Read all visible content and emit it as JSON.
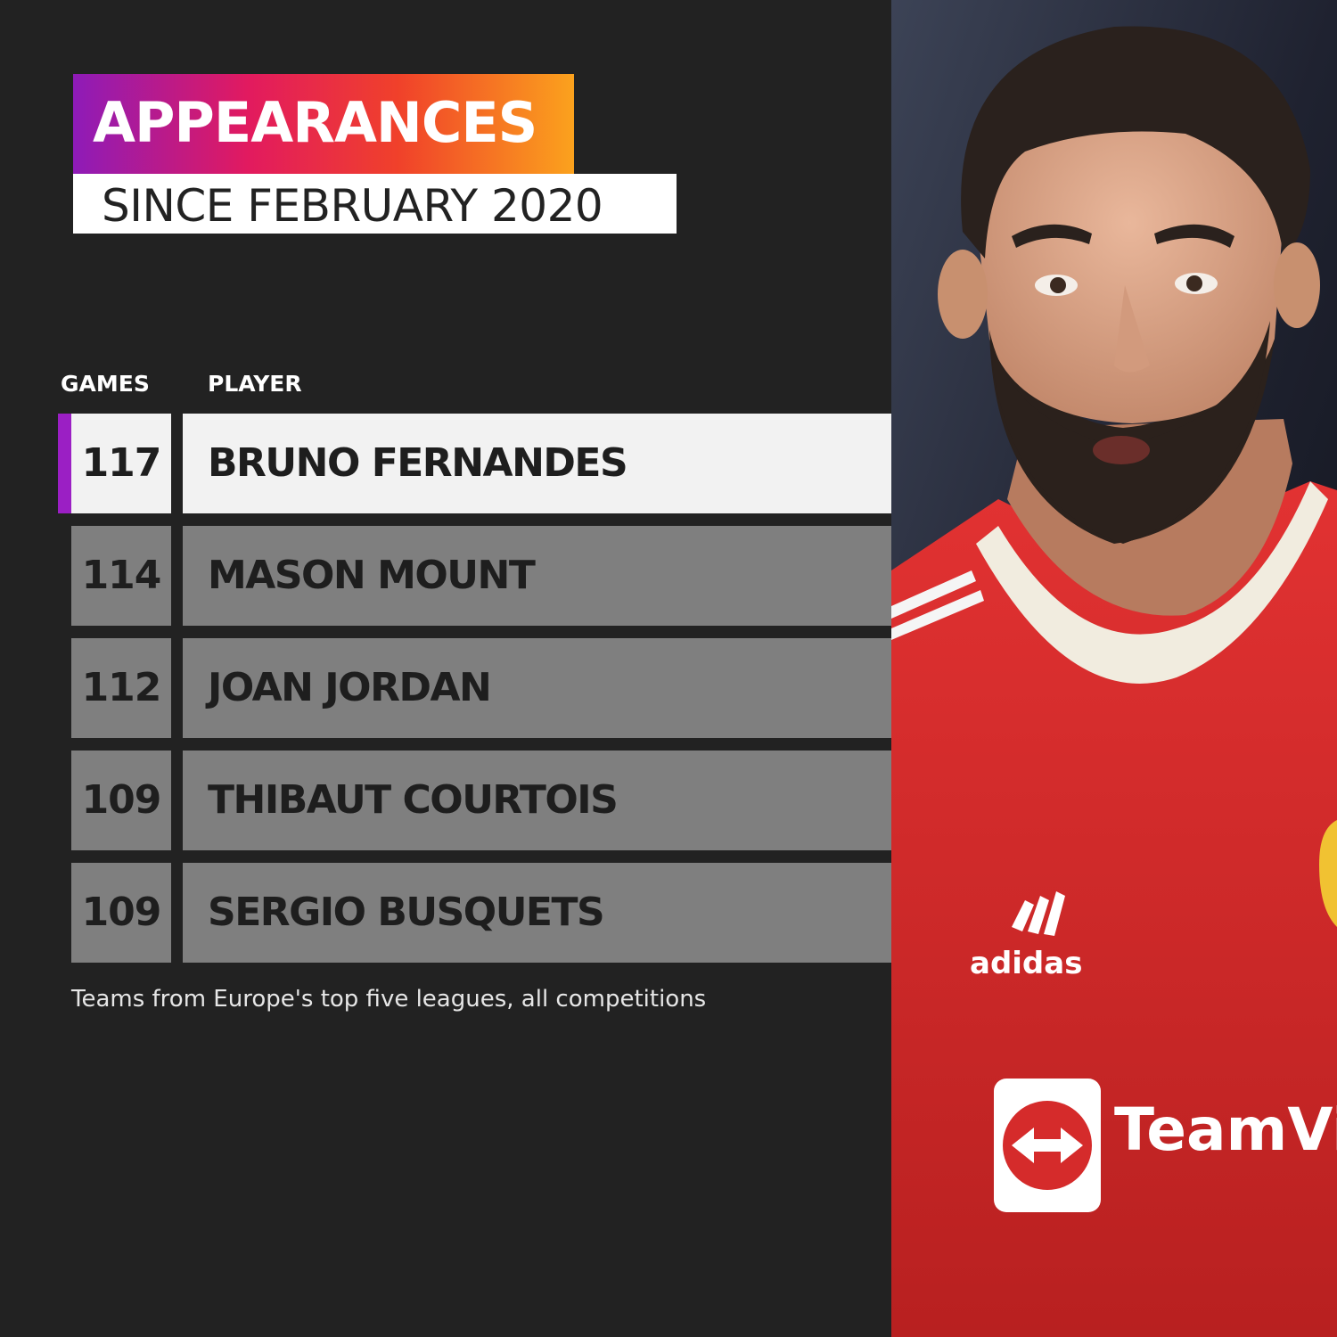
{
  "header": {
    "title": "APPEARANCES",
    "subtitle": "SINCE FEBRUARY 2020"
  },
  "table": {
    "columns": {
      "games": "GAMES",
      "player": "PLAYER"
    },
    "rows": [
      {
        "games": "117",
        "player": "BRUNO FERNANDES"
      },
      {
        "games": "114",
        "player": "MASON MOUNT"
      },
      {
        "games": "112",
        "player": "JOAN JORDAN"
      },
      {
        "games": "109",
        "player": "THIBAUT COURTOIS"
      },
      {
        "games": "109",
        "player": "SERGIO BUSQUETS"
      }
    ]
  },
  "footnote": "Teams from Europe's top five leagues, all competitions",
  "photo": {
    "subject": "player-portrait",
    "shirt_text": "TeamVie",
    "kit_brand": "adidas"
  },
  "colors": {
    "background": "#222222",
    "row": "#7f7f7f",
    "highlight_row": "#f2f2f2",
    "accent": "#9b1fc4",
    "shirt": "#d52b2b"
  }
}
